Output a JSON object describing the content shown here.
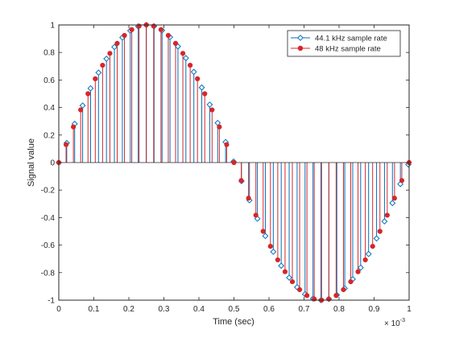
{
  "chart_data": {
    "type": "stem",
    "function": "sin(2*pi*1000*t)",
    "xlabel": "Time (sec)",
    "ylabel": "Signal value",
    "x_exponent_label": "× 10",
    "x_exponent_power": "-3",
    "xlim": [
      0,
      1
    ],
    "ylim": [
      -1,
      1
    ],
    "xticks": [
      {
        "value": 0,
        "label": "0"
      },
      {
        "value": 0.1,
        "label": "0.1"
      },
      {
        "value": 0.2,
        "label": "0.2"
      },
      {
        "value": 0.3,
        "label": "0.3"
      },
      {
        "value": 0.4,
        "label": "0.4"
      },
      {
        "value": 0.5,
        "label": "0.5"
      },
      {
        "value": 0.6,
        "label": "0.6"
      },
      {
        "value": 0.7,
        "label": "0.7"
      },
      {
        "value": 0.8,
        "label": "0.8"
      },
      {
        "value": 0.9,
        "label": "0.9"
      },
      {
        "value": 1,
        "label": "1"
      }
    ],
    "yticks": [
      {
        "value": -1,
        "label": "-1"
      },
      {
        "value": -0.8,
        "label": "-0.8"
      },
      {
        "value": -0.6,
        "label": "-0.6"
      },
      {
        "value": -0.4,
        "label": "-0.4"
      },
      {
        "value": -0.2,
        "label": "-0.2"
      },
      {
        "value": 0,
        "label": "0"
      },
      {
        "value": 0.2,
        "label": "0.2"
      },
      {
        "value": 0.4,
        "label": "0.4"
      },
      {
        "value": 0.6,
        "label": "0.6"
      },
      {
        "value": 0.8,
        "label": "0.8"
      },
      {
        "value": 1,
        "label": "1"
      }
    ],
    "grid": false,
    "legend_position": "top-right",
    "series": [
      {
        "name": "44.1 kHz sample rate",
        "sample_rate_hz": 44100,
        "sample_count": 45,
        "color": "#0072bd",
        "marker": "diamond-open"
      },
      {
        "name": "48 kHz sample rate",
        "sample_rate_hz": 48000,
        "sample_count": 49,
        "color": "#d62728",
        "marker": "circle-filled"
      }
    ]
  }
}
